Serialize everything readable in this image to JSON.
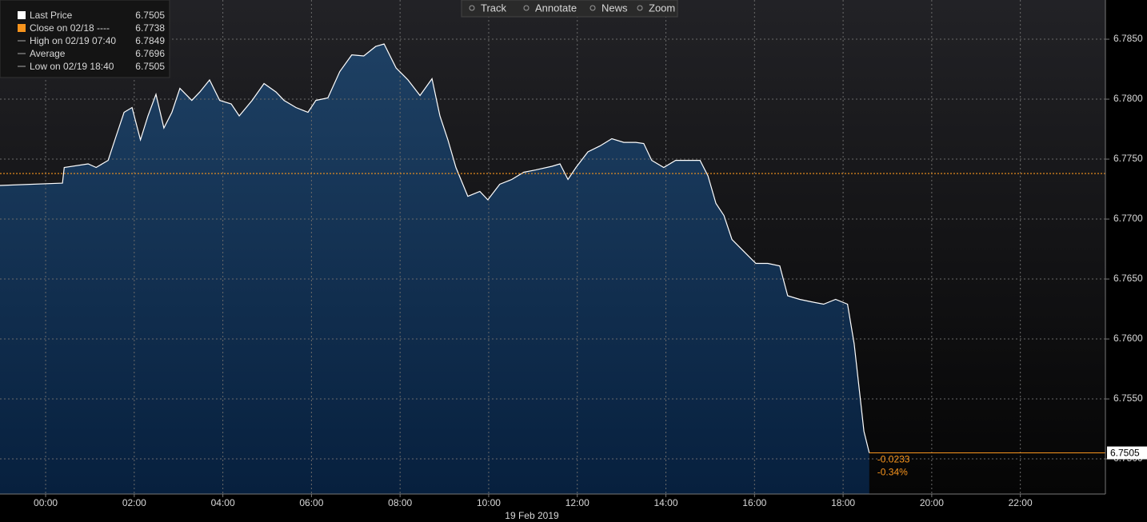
{
  "chart_data": {
    "type": "area",
    "toolbar": [
      "Track",
      "Annotate",
      "News",
      "Zoom"
    ],
    "x_label": "19 Feb 2019",
    "legend": [
      {
        "label": "Last Price",
        "value": 6.7505,
        "color": "#ffffff"
      },
      {
        "label": "Close on 02/18 ----",
        "value": 6.7738,
        "color": "#f7941d"
      },
      {
        "label": "High on 02/19 07:40",
        "value": 6.7849,
        "color": "#aaaaaa"
      },
      {
        "label": "Average",
        "value": 6.7696,
        "color": "#aaaaaa"
      },
      {
        "label": "Low on 02/19 18:40",
        "value": 6.7505,
        "color": "#aaaaaa"
      }
    ],
    "annotations": [
      "-0.0233",
      "-0.34%"
    ],
    "series": [
      {
        "name": "Last Price",
        "color": "#ffffff",
        "x": [
          -1.03,
          0.38,
          0.42,
          0.96,
          1.14,
          1.41,
          1.59,
          1.77,
          1.95,
          2.14,
          2.31,
          2.49,
          2.67,
          2.85,
          3.03,
          3.3,
          3.48,
          3.7,
          3.93,
          4.19,
          4.37,
          4.66,
          4.93,
          5.2,
          5.38,
          5.65,
          5.92,
          6.1,
          6.37,
          6.64,
          6.91,
          7.18,
          7.45,
          7.64,
          7.91,
          8.18,
          8.45,
          8.72,
          8.9,
          9.08,
          9.26,
          9.53,
          9.8,
          9.98,
          10.25,
          10.52,
          10.79,
          11.06,
          11.43,
          11.61,
          11.79,
          11.97,
          12.24,
          12.51,
          12.78,
          13.05,
          13.32,
          13.5,
          13.68,
          13.95,
          14.22,
          14.5,
          14.77,
          14.95,
          15.13,
          15.31,
          15.49,
          15.76,
          16.03,
          16.3,
          16.57,
          16.75,
          17.02,
          17.29,
          17.56,
          17.83,
          18.1,
          18.25,
          18.38,
          18.47,
          18.59
        ],
        "values": [
          6.7728,
          6.773,
          6.7743,
          6.7746,
          6.7743,
          6.7749,
          6.7769,
          6.7789,
          6.7793,
          6.7766,
          6.7786,
          6.7804,
          6.7776,
          6.7789,
          6.7809,
          6.7799,
          6.7806,
          6.7816,
          6.7799,
          6.7796,
          6.7786,
          6.7799,
          6.7813,
          6.7806,
          6.7799,
          6.7793,
          6.7789,
          6.7799,
          6.7801,
          6.7823,
          6.7837,
          6.7836,
          6.7844,
          6.7846,
          6.7826,
          6.7816,
          6.7803,
          6.7817,
          6.7786,
          6.7766,
          6.7743,
          6.7719,
          6.7723,
          6.7716,
          6.7729,
          6.7733,
          6.7739,
          6.7741,
          6.7744,
          6.7746,
          6.7733,
          6.7743,
          6.7756,
          6.7761,
          6.7767,
          6.7764,
          6.7764,
          6.7763,
          6.7749,
          6.7743,
          6.7749,
          6.7749,
          6.7749,
          6.7736,
          6.7713,
          6.7703,
          6.7683,
          6.7673,
          6.7663,
          6.7663,
          6.7661,
          6.7636,
          6.7633,
          6.7631,
          6.7629,
          6.7633,
          6.7629,
          6.7596,
          6.7553,
          6.7523,
          6.7505
        ]
      }
    ],
    "xlim": [
      -1.03,
      23.92
    ],
    "xticks": [
      {
        "value": 0,
        "label": "00:00"
      },
      {
        "value": 2,
        "label": "02:00"
      },
      {
        "value": 4,
        "label": "04:00"
      },
      {
        "value": 6,
        "label": "06:00"
      },
      {
        "value": 8,
        "label": "08:00"
      },
      {
        "value": 10,
        "label": "10:00"
      },
      {
        "value": 12,
        "label": "12:00"
      },
      {
        "value": 14,
        "label": "14:00"
      },
      {
        "value": 16,
        "label": "16:00"
      },
      {
        "value": 18,
        "label": "18:00"
      },
      {
        "value": 20,
        "label": "20:00"
      },
      {
        "value": 22,
        "label": "22:00"
      }
    ],
    "ylim": [
      6.74707,
      6.78827
    ],
    "yticks": [
      {
        "value": 6.75,
        "label": "6.7500"
      },
      {
        "value": 6.755,
        "label": "6.7550"
      },
      {
        "value": 6.76,
        "label": "6.7600"
      },
      {
        "value": 6.765,
        "label": "6.7650"
      },
      {
        "value": 6.77,
        "label": "6.7700"
      },
      {
        "value": 6.775,
        "label": "6.7750"
      },
      {
        "value": 6.78,
        "label": "6.7800"
      },
      {
        "value": 6.785,
        "label": "6.7850"
      }
    ],
    "grid": true
  }
}
